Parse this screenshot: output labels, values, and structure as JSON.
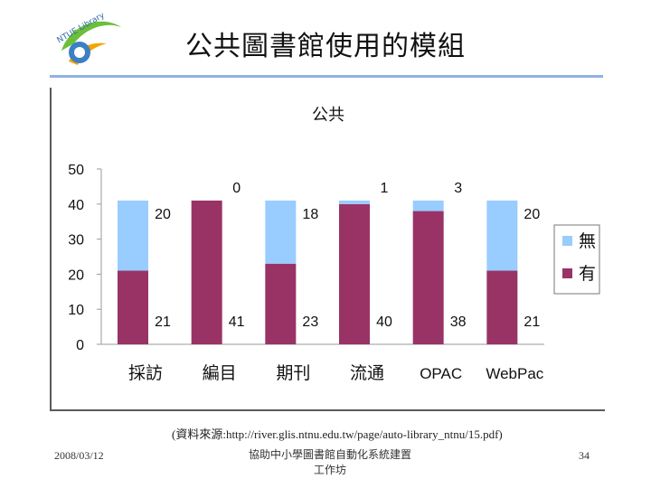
{
  "slide": {
    "title": "公共圖書館使用的模組",
    "logo_text": "NTUE Library",
    "source": "(資料來源:http://river.glis.ntnu.edu.tw/page/auto-library_ntnu/15.pdf)",
    "footer": {
      "date": "2008/03/12",
      "center_line1": "協助中小學圖書館自動化系統建置",
      "center_line2": "工作坊",
      "page": "34"
    }
  },
  "colors": {
    "has": "#993366",
    "none": "#99ccff",
    "title_rule": "#8fb3de"
  },
  "chart_data": {
    "type": "bar",
    "stacked": true,
    "title": "公共",
    "categories": [
      "採訪",
      "編目",
      "期刊",
      "流通",
      "OPAC",
      "WebPac"
    ],
    "series": [
      {
        "name": "有",
        "values": [
          21,
          41,
          23,
          40,
          38,
          21
        ],
        "color": "#993366"
      },
      {
        "name": "無",
        "values": [
          20,
          0,
          18,
          1,
          3,
          20
        ],
        "color": "#99ccff"
      }
    ],
    "ylim": [
      0,
      50
    ],
    "yticks": [
      0,
      10,
      20,
      30,
      40,
      50
    ],
    "grid": false,
    "legend": "right",
    "data_labels": true
  }
}
